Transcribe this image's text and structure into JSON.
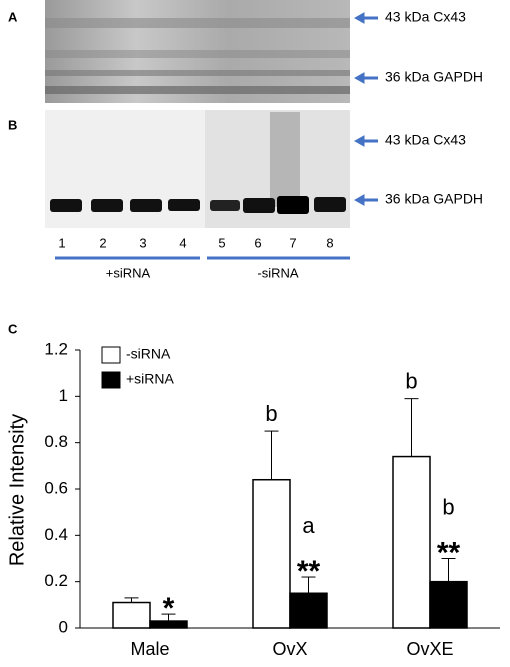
{
  "panels": {
    "a": {
      "label": "A",
      "band_labels": [
        "43 kDa Cx43",
        "36 kDa GAPDH"
      ]
    },
    "b": {
      "label": "B",
      "band_labels": [
        "43 kDa Cx43",
        "36 kDa GAPDH"
      ],
      "lanes": [
        "1",
        "2",
        "3",
        "4",
        "5",
        "6",
        "7",
        "8"
      ],
      "groups": [
        "+siRNA",
        "-siRNA"
      ]
    },
    "c": {
      "label": "C"
    }
  },
  "chart_data": {
    "type": "bar",
    "y_label": "Relative Intensity",
    "categories": [
      "Male",
      "OvX",
      "OvXE"
    ],
    "series": [
      {
        "name": "-siRNA",
        "color": "#ffffff",
        "values": [
          0.11,
          0.64,
          0.74
        ],
        "errors": [
          0.02,
          0.21,
          0.25
        ],
        "letters": [
          null,
          "b",
          "b"
        ],
        "stars": [
          null,
          null,
          null
        ]
      },
      {
        "name": "+siRNA",
        "color": "#000000",
        "values": [
          0.03,
          0.15,
          0.2
        ],
        "errors": [
          0.03,
          0.07,
          0.1
        ],
        "letters": [
          null,
          "a",
          "b"
        ],
        "stars": [
          "*",
          "**",
          "**"
        ]
      }
    ],
    "ylim": [
      0,
      1.2
    ],
    "yticks": [
      0,
      0.2,
      0.4,
      0.6,
      0.8,
      1,
      1.2
    ],
    "grid": false,
    "legend": "top-left"
  }
}
